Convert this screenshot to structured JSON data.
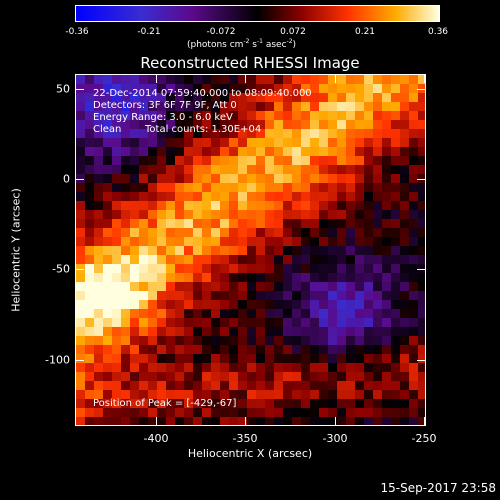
{
  "colorbar": {
    "ticks": [
      "-0.36",
      "-0.21",
      "-0.072",
      "0.072",
      "0.21",
      "0.36"
    ],
    "units_prefix": "(photons cm",
    "units_exp1": "-2",
    "units_mid1": " s",
    "units_exp2": "-1",
    "units_mid2": " asec",
    "units_exp3": "-2",
    "units_suffix": ")"
  },
  "title": "Reconstructed RHESSI Image",
  "annotations": {
    "time_range": "22-Dec-2014 07:59:40.000 to 08:09:40.000",
    "detectors": "Detectors: 3F 6F 7F 9F, Att 0",
    "energy": "Energy Range: 3.0 - 6.0 keV",
    "clean": "Clean",
    "counts": "Total counts: 1.30E+04",
    "peak": "Position of Peak = [-429,-67]"
  },
  "chart_data": {
    "type": "heatmap",
    "title": "Reconstructed RHESSI Image",
    "xlabel": "Heliocentric X (arcsec)",
    "ylabel": "Heliocentric Y (arcsec)",
    "xlim": [
      -445,
      -250
    ],
    "ylim": [
      -135,
      60
    ],
    "x_ticks": [
      "-400",
      "-350",
      "-300",
      "-250"
    ],
    "y_ticks": [
      "50",
      "0",
      "-50",
      "-100"
    ],
    "color_range": [
      -0.36,
      0.36
    ],
    "colormap": [
      "#0000ff",
      "#5a0a8a",
      "#000000",
      "#8b0000",
      "#ff3300",
      "#ffaa00",
      "#ffffff"
    ],
    "peak_position": [
      -429,
      -67
    ],
    "grid": false
  },
  "footer": "15-Sep-2017 23:58"
}
